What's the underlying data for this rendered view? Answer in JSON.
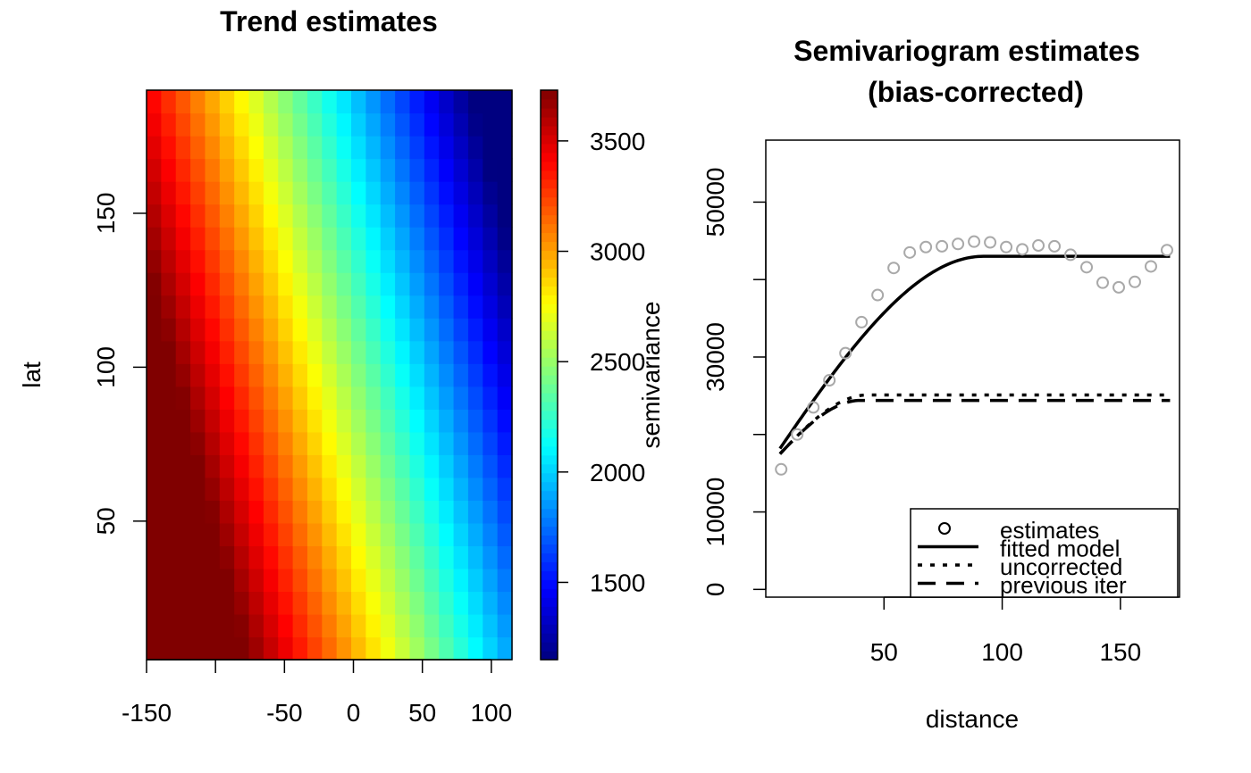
{
  "chart_data": [
    {
      "type": "heatmap",
      "title": "Trend estimates",
      "xlabel": "",
      "ylabel": "lat",
      "xlim": [
        -150,
        115
      ],
      "ylim": [
        5,
        190
      ],
      "x_ticks": [
        -150,
        -100,
        -50,
        0,
        50,
        100
      ],
      "x_tick_labels": [
        "-150",
        "",
        "-50",
        "0",
        "50",
        "100"
      ],
      "y_ticks": [
        50,
        100,
        150
      ],
      "y_tick_labels": [
        "50",
        "100",
        "150"
      ],
      "colorbar": {
        "label": "semivariance",
        "min": 1150,
        "max": 3730,
        "ticks": [
          1500,
          2000,
          2500,
          3000,
          3500
        ],
        "tick_labels": [
          "1500",
          "2000",
          "2500",
          "3000",
          "3500"
        ],
        "colormap": "jet"
      },
      "grid": {
        "ncols": 25,
        "nrows": 25,
        "value_model": {
          "base": 2650,
          "x_coef": -9.7,
          "y_coef": -5.5,
          "x_center": -17.5,
          "y_center": 97.5
        }
      }
    },
    {
      "type": "scatter",
      "title": "Semivariogram estimates",
      "subtitle": "(bias-corrected)",
      "xlabel": "distance",
      "ylabel": "",
      "xlim": [
        0,
        175
      ],
      "ylim": [
        -1000,
        58000
      ],
      "x_ticks": [
        50,
        100,
        150
      ],
      "x_tick_labels": [
        "50",
        "100",
        "150"
      ],
      "y_ticks": [
        0,
        10000,
        20000,
        30000,
        40000,
        50000
      ],
      "y_tick_labels": [
        "0",
        "10000",
        "",
        "30000",
        "",
        "50000"
      ],
      "estimates": {
        "x": [
          6.5,
          13.3,
          20.1,
          26.9,
          33.7,
          40.5,
          47.3,
          54.1,
          60.9,
          67.7,
          74.5,
          81.3,
          88.1,
          94.9,
          101.7,
          108.5,
          115.3,
          122.1,
          128.9,
          135.7,
          142.5,
          149.3,
          156.1,
          162.9,
          169.7
        ],
        "y": [
          15500,
          20000,
          23500,
          27000,
          30500,
          34500,
          38000,
          41500,
          43500,
          44200,
          44300,
          44600,
          44900,
          44800,
          44200,
          43900,
          44400,
          44300,
          43200,
          41600,
          39600,
          39000,
          39700,
          41700,
          43800
        ],
        "color": "#a9a9a9"
      },
      "series": [
        {
          "name": "fitted model",
          "style": "solid",
          "model": "spherical",
          "x_from": 6,
          "x_to": 171,
          "nugget": 15500,
          "sill": 43000,
          "range": 92
        },
        {
          "name": "uncorrected",
          "style": "dotted",
          "model": "spherical",
          "x_from": 6,
          "x_to": 171,
          "nugget": 15500,
          "sill": 25100,
          "range": 43
        },
        {
          "name": "previous iter",
          "style": "dashed",
          "model": "spherical",
          "x_from": 6,
          "x_to": 171,
          "nugget": 15500,
          "sill": 24400,
          "range": 40
        }
      ],
      "legend": {
        "position": "bottom-right",
        "entries": [
          "estimates",
          "fitted model",
          "uncorrected",
          "previous iter"
        ]
      }
    }
  ]
}
